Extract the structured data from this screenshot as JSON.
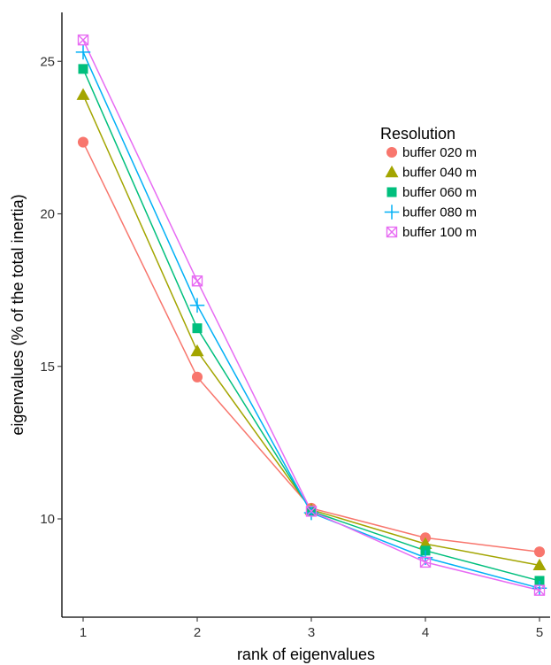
{
  "chart_data": {
    "type": "line",
    "title": "",
    "xlabel": "rank of eigenvalues",
    "ylabel": "eigenvalues (% of the total inertia)",
    "x": [
      1,
      2,
      3,
      4,
      5
    ],
    "x_ticks": [
      "1",
      "2",
      "3",
      "4",
      "5"
    ],
    "ylim": [
      7.1,
      26.7
    ],
    "y_ticks": [
      10,
      15,
      20,
      25
    ],
    "grid": false,
    "legend": {
      "title": "Resolution",
      "placement": "right-inside-top"
    },
    "series": [
      {
        "name": "buffer 020 m",
        "color": "#F8766D",
        "marker": "circle",
        "values": [
          22.35,
          14.65,
          10.35,
          9.38,
          8.92
        ]
      },
      {
        "name": "buffer 040 m",
        "color": "#A3A500",
        "marker": "triangle",
        "values": [
          23.9,
          15.5,
          10.3,
          9.18,
          8.48
        ]
      },
      {
        "name": "buffer 060 m",
        "color": "#00BF7D",
        "marker": "square",
        "values": [
          24.75,
          16.25,
          10.25,
          8.96,
          7.97
        ]
      },
      {
        "name": "buffer 080 m",
        "color": "#00B0F6",
        "marker": "plus",
        "values": [
          25.3,
          17.0,
          10.2,
          8.73,
          7.73
        ]
      },
      {
        "name": "buffer 100 m",
        "color": "#E76BF3",
        "marker": "boxx",
        "values": [
          25.7,
          17.8,
          10.25,
          8.58,
          7.66
        ]
      }
    ]
  }
}
